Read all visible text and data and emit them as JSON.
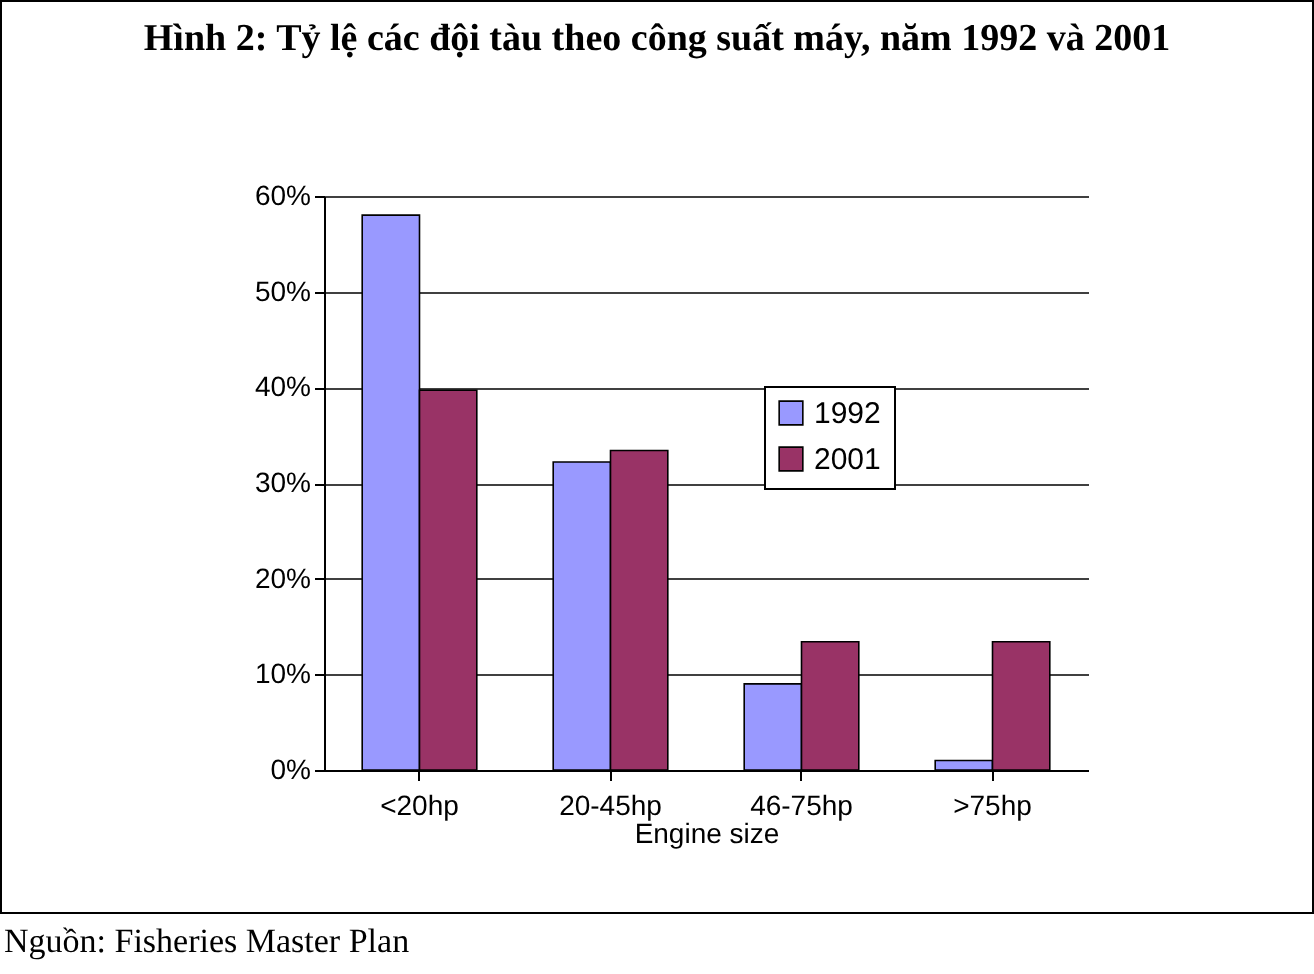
{
  "chart_data": {
    "type": "bar",
    "title": "Hình 2: Tỷ lệ các đội tàu theo công suất máy, năm 1992 và 2001",
    "xlabel": "Engine size",
    "categories": [
      "<20hp",
      "20-45hp",
      "46-75hp",
      ">75hp"
    ],
    "series": [
      {
        "name": "1992",
        "color": "#9999ff",
        "values": [
          58,
          32.2,
          9,
          1
        ]
      },
      {
        "name": "2001",
        "color": "#993366",
        "values": [
          39.7,
          33.4,
          13.4,
          13.4
        ]
      }
    ],
    "ylim": [
      0,
      60
    ],
    "yticks": [
      {
        "value": 0,
        "label": "0%"
      },
      {
        "value": 10,
        "label": "10%"
      },
      {
        "value": 20,
        "label": "20%"
      },
      {
        "value": 30,
        "label": "30%"
      },
      {
        "value": 40,
        "label": "40%"
      },
      {
        "value": 50,
        "label": "50%"
      },
      {
        "value": 60,
        "label": "60%"
      }
    ],
    "grid": "y",
    "legend": "right",
    "annotations": [
      "Nguồn: Fisheries Master Plan"
    ]
  }
}
